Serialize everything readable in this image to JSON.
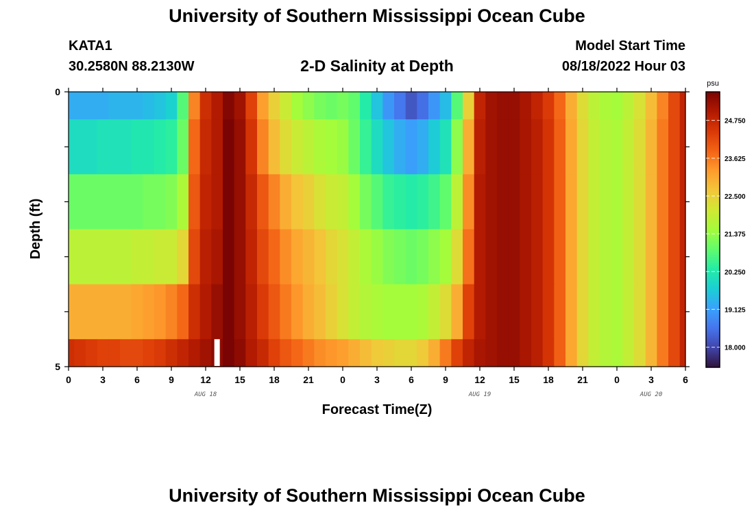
{
  "header": {
    "main_title": "University of Southern Mississippi Ocean Cube",
    "station_id": "KATA1",
    "station_coords": "30.2580N  88.2130W",
    "plot_title": "2-D Salinity at Depth",
    "start_label": "Model Start Time",
    "start_time": "08/18/2022 Hour 03",
    "bottom_title": "University of Southern Mississippi Ocean Cube"
  },
  "chart_data": {
    "type": "heatmap",
    "title": "2-D Salinity at Depth",
    "xlabel": "Forecast Time(Z)",
    "ylabel": "Depth (ft)",
    "x_range": [
      0,
      54
    ],
    "x_tick_labels": [
      "0",
      "3",
      "6",
      "9",
      "12",
      "15",
      "18",
      "21",
      "0",
      "3",
      "6",
      "9",
      "12",
      "15",
      "18",
      "21",
      "0",
      "3",
      "6"
    ],
    "date_labels": [
      "AUG 18",
      "AUG 19",
      "AUG 20"
    ],
    "date_label_hours": [
      12,
      36,
      51
    ],
    "y_range": [
      0,
      5
    ],
    "y_tick_labels": [
      "0",
      "5"
    ],
    "depth_layers": [
      {
        "top": 0.0,
        "bottom": 0.5
      },
      {
        "top": 0.5,
        "bottom": 1.5
      },
      {
        "top": 1.5,
        "bottom": 2.5
      },
      {
        "top": 2.5,
        "bottom": 3.5
      },
      {
        "top": 3.5,
        "bottom": 4.5
      },
      {
        "top": 4.5,
        "bottom": 5.0
      }
    ],
    "hours": [
      0,
      1,
      2,
      3,
      4,
      5,
      6,
      7,
      8,
      9,
      10,
      11,
      12,
      13,
      14,
      15,
      16,
      17,
      18,
      19,
      20,
      21,
      22,
      23,
      24,
      25,
      26,
      27,
      28,
      29,
      30,
      31,
      32,
      33,
      34,
      35,
      36,
      37,
      38,
      39,
      40,
      41,
      42,
      43,
      44,
      45,
      46,
      47,
      48,
      49,
      50,
      51,
      52,
      53,
      54
    ],
    "salinity": [
      [
        19.3,
        19.3,
        19.3,
        19.3,
        19.4,
        19.4,
        19.4,
        19.5,
        19.6,
        19.8,
        20.8,
        23.5,
        24.6,
        25.0,
        25.5,
        25.2,
        24.3,
        23.2,
        22.5,
        22.0,
        21.5,
        21.3,
        21.1,
        21.0,
        21.1,
        20.9,
        20.3,
        19.6,
        19.0,
        18.6,
        18.2,
        18.5,
        19.0,
        19.5,
        20.8,
        22.5,
        24.8,
        25.2,
        25.3,
        25.3,
        25.1,
        24.8,
        24.4,
        23.8,
        23.0,
        22.3,
        21.8,
        21.6,
        21.5,
        21.8,
        22.2,
        22.8,
        23.5,
        24.2,
        24.8
      ],
      [
        20.0,
        20.0,
        20.0,
        20.1,
        20.1,
        20.1,
        20.2,
        20.2,
        20.3,
        20.4,
        21.0,
        23.8,
        24.7,
        25.0,
        25.6,
        25.3,
        24.5,
        23.5,
        22.8,
        22.3,
        22.0,
        21.8,
        21.6,
        21.5,
        21.4,
        21.0,
        20.5,
        20.0,
        19.6,
        19.3,
        19.1,
        19.3,
        19.7,
        20.1,
        21.3,
        23.0,
        24.9,
        25.2,
        25.3,
        25.3,
        25.1,
        24.9,
        24.5,
        23.9,
        23.1,
        22.4,
        21.9,
        21.7,
        21.6,
        21.9,
        22.3,
        22.9,
        23.6,
        24.2,
        24.8
      ],
      [
        21.0,
        21.0,
        21.0,
        21.0,
        21.0,
        21.0,
        21.0,
        21.1,
        21.1,
        21.2,
        21.6,
        24.0,
        24.8,
        25.0,
        25.6,
        25.3,
        24.7,
        24.0,
        23.5,
        23.0,
        22.7,
        22.5,
        22.2,
        22.0,
        21.9,
        21.5,
        21.1,
        20.8,
        20.5,
        20.4,
        20.3,
        20.4,
        20.6,
        20.9,
        21.8,
        23.4,
        25.0,
        25.2,
        25.3,
        25.3,
        25.1,
        24.9,
        24.5,
        23.9,
        23.1,
        22.4,
        21.9,
        21.7,
        21.6,
        21.9,
        22.3,
        22.9,
        23.6,
        24.2,
        24.8
      ],
      [
        21.8,
        21.8,
        21.8,
        21.8,
        21.8,
        21.8,
        21.9,
        21.9,
        22.0,
        22.0,
        22.4,
        24.2,
        24.9,
        25.1,
        25.6,
        25.3,
        24.8,
        24.2,
        23.8,
        23.4,
        23.1,
        22.9,
        22.7,
        22.4,
        22.2,
        21.9,
        21.6,
        21.4,
        21.2,
        21.1,
        21.0,
        21.1,
        21.3,
        21.5,
        22.3,
        23.7,
        25.0,
        25.2,
        25.3,
        25.3,
        25.1,
        24.9,
        24.5,
        23.9,
        23.1,
        22.4,
        21.9,
        21.7,
        21.6,
        21.9,
        22.3,
        22.9,
        23.6,
        24.2,
        24.8
      ],
      [
        23.0,
        23.0,
        23.0,
        23.0,
        23.0,
        23.0,
        23.1,
        23.2,
        23.3,
        23.5,
        23.8,
        24.6,
        25.0,
        25.3,
        25.6,
        25.3,
        24.9,
        24.4,
        24.0,
        23.6,
        23.3,
        23.0,
        22.8,
        22.5,
        22.2,
        21.9,
        21.7,
        21.6,
        21.5,
        21.5,
        21.5,
        21.6,
        21.9,
        22.3,
        23.0,
        24.3,
        25.0,
        25.2,
        25.3,
        25.3,
        25.1,
        24.9,
        24.5,
        23.9,
        23.1,
        22.4,
        21.9,
        21.7,
        21.6,
        21.9,
        22.3,
        22.9,
        23.6,
        24.2,
        24.8
      ],
      [
        24.6,
        24.5,
        24.4,
        24.3,
        24.3,
        24.2,
        24.2,
        24.3,
        24.4,
        24.6,
        24.8,
        25.0,
        25.2,
        25.4,
        25.6,
        25.4,
        25.0,
        24.7,
        24.3,
        24.0,
        23.8,
        23.6,
        23.4,
        23.3,
        23.2,
        23.0,
        22.8,
        22.6,
        22.5,
        22.4,
        22.4,
        22.6,
        23.0,
        23.6,
        24.3,
        24.8,
        25.1,
        25.2,
        25.3,
        25.3,
        25.1,
        24.9,
        24.5,
        23.9,
        23.1,
        22.4,
        21.9,
        21.7,
        21.6,
        21.9,
        22.3,
        22.9,
        23.6,
        24.2,
        24.8
      ]
    ],
    "marker_hour": 13,
    "colorbar": {
      "unit": "psu",
      "min": 17.4,
      "max": 25.6,
      "ticks": [
        18.0,
        19.125,
        20.25,
        21.375,
        22.5,
        23.625,
        24.75
      ],
      "tick_labels": [
        "18.000",
        "19.125",
        "20.250",
        "21.375",
        "22.500",
        "23.625",
        "24.750"
      ],
      "stops": [
        "#30123b",
        "#4145ab",
        "#4675ed",
        "#39a2fc",
        "#1bcfd4",
        "#24eca6",
        "#61fc6c",
        "#a4fc3b",
        "#d1e834",
        "#f3c63a",
        "#fe9b2d",
        "#f36315",
        "#d93806",
        "#b11901",
        "#7a0403"
      ]
    }
  }
}
